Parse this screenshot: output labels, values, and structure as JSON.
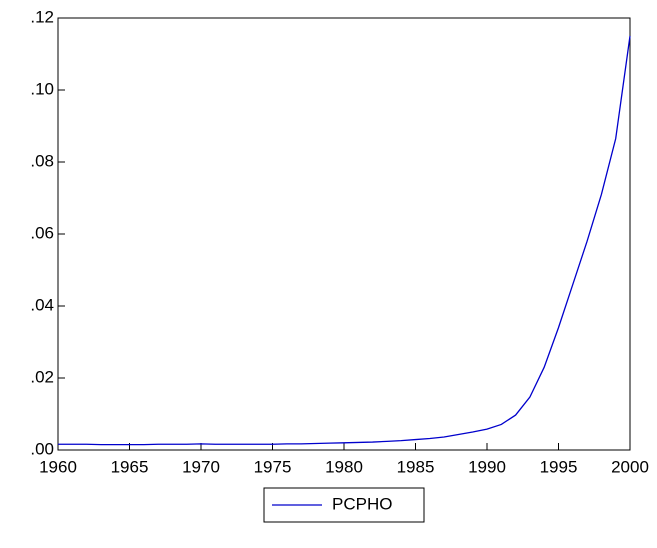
{
  "chart_data": {
    "type": "line",
    "x": [
      1960,
      1961,
      1962,
      1963,
      1964,
      1965,
      1966,
      1967,
      1968,
      1969,
      1970,
      1971,
      1972,
      1973,
      1974,
      1975,
      1976,
      1977,
      1978,
      1979,
      1980,
      1981,
      1982,
      1983,
      1984,
      1985,
      1986,
      1987,
      1988,
      1989,
      1990,
      1991,
      1992,
      1993,
      1994,
      1995,
      1996,
      1997,
      1998,
      1999,
      2000
    ],
    "series": [
      {
        "name": "PCPHO",
        "color": "#0000cc",
        "values": [
          0.0016,
          0.0016,
          0.0016,
          0.0015,
          0.0015,
          0.0015,
          0.0015,
          0.0016,
          0.0016,
          0.0016,
          0.0017,
          0.0016,
          0.0016,
          0.0016,
          0.0016,
          0.0016,
          0.0017,
          0.0017,
          0.0018,
          0.0019,
          0.002,
          0.0021,
          0.0022,
          0.0024,
          0.0026,
          0.0029,
          0.0032,
          0.0036,
          0.0043,
          0.005,
          0.0058,
          0.0071,
          0.0097,
          0.0147,
          0.023,
          0.034,
          0.046,
          0.058,
          0.071,
          0.0865,
          0.115
        ]
      }
    ],
    "xlim": [
      1960,
      2000
    ],
    "xticks": [
      1960,
      1965,
      1970,
      1975,
      1980,
      1985,
      1990,
      1995,
      2000
    ],
    "ylim": [
      0,
      0.12
    ],
    "yticks": [
      {
        "value": 0,
        "label": ".00"
      },
      {
        "value": 0.02,
        "label": ".02"
      },
      {
        "value": 0.04,
        "label": ".04"
      },
      {
        "value": 0.06,
        "label": ".06"
      },
      {
        "value": 0.08,
        "label": ".08"
      },
      {
        "value": 0.1,
        "label": ".10"
      },
      {
        "value": 0.12,
        "label": ".12"
      }
    ],
    "legend": "bottom"
  }
}
